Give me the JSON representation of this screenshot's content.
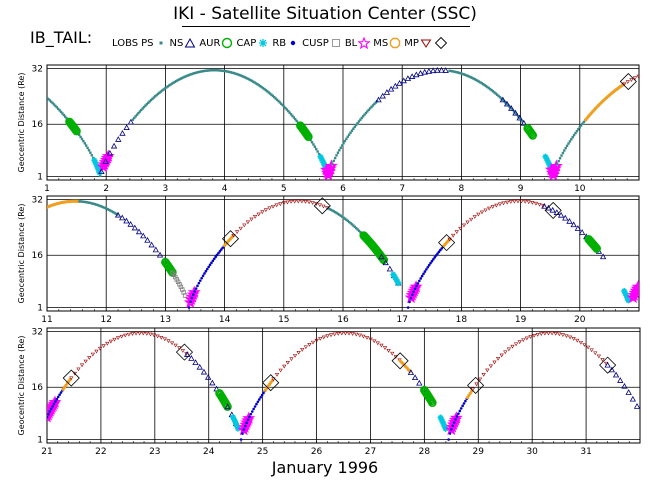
{
  "header": {
    "title": "IKI - Satellite Situation Center (SSC)",
    "mission": "IB_TAIL:"
  },
  "legend": [
    {
      "label": "LOBS",
      "symbol": "none",
      "color": "#000000"
    },
    {
      "label": "PS",
      "symbol": "square",
      "color": "#3a8a8a"
    },
    {
      "label": "NS",
      "symbol": "triangle",
      "color": "#000080"
    },
    {
      "label": "AUR",
      "symbol": "circle",
      "color": "#00b000"
    },
    {
      "label": "CAP",
      "symbol": "star",
      "color": "#00c8e0"
    },
    {
      "label": "RB",
      "symbol": "dot",
      "color": "#0000cc"
    },
    {
      "label": "CUSP",
      "symbol": "square-open",
      "color": "#808080"
    },
    {
      "label": "BL",
      "symbol": "star-open",
      "color": "#ff00ff"
    },
    {
      "label": "MS",
      "symbol": "octagon",
      "color": "#f0a020"
    },
    {
      "label": "MP",
      "symbol": "triangle-down",
      "color": "#a00000"
    },
    {
      "label": "",
      "symbol": "diamond",
      "color": "#000000"
    }
  ],
  "footer": {
    "xlabel": "January    1996"
  },
  "colors": {
    "PS": "#3a8a8a",
    "NS": "#000080",
    "AUR": "#00b000",
    "CAP": "#00c8e0",
    "RB": "#0000cc",
    "CUSP": "#808080",
    "BL": "#ff00ff",
    "MS": "#f0a020",
    "MP": "#a00000"
  },
  "chart_data": [
    {
      "type": "scatter",
      "ylabel": "Geocentric Distance  (Re)",
      "xlim": [
        1,
        11
      ],
      "ylim": [
        0,
        33
      ],
      "yticks": [
        1,
        16,
        32
      ],
      "xticks": [
        1,
        2,
        3,
        4,
        5,
        6,
        7,
        8,
        9,
        10
      ],
      "grid": true,
      "orbit": {
        "perigees": [
          1.9,
          5.75,
          9.55
        ],
        "prev_perigee": -1.95,
        "next_perigee": 13.4,
        "apogee": 31.5,
        "perigee_distance": 1
      },
      "regions": [
        {
          "region": "PS",
          "x_range": [
            1.0,
            1.92
          ]
        },
        {
          "region": "AUR",
          "x_range": [
            1.38,
            1.5
          ]
        },
        {
          "region": "CAP",
          "x_range": [
            1.8,
            1.9
          ]
        },
        {
          "region": "BL",
          "x_range": [
            1.95,
            2.05
          ]
        },
        {
          "region": "NS",
          "x_range": [
            1.92,
            2.45
          ]
        },
        {
          "region": "PS",
          "x_range": [
            2.45,
            5.75
          ]
        },
        {
          "region": "AUR",
          "x_range": [
            5.28,
            5.42
          ]
        },
        {
          "region": "CAP",
          "x_range": [
            5.62,
            5.72
          ]
        },
        {
          "region": "BL",
          "x_range": [
            5.72,
            5.82
          ]
        },
        {
          "region": "PS",
          "x_range": [
            5.82,
            6.6
          ]
        },
        {
          "region": "NS",
          "x_range": [
            6.6,
            7.8
          ]
        },
        {
          "region": "PS",
          "x_range": [
            7.8,
            9.05
          ]
        },
        {
          "region": "NS",
          "x_range": [
            8.7,
            9.1
          ]
        },
        {
          "region": "AUR",
          "x_range": [
            9.12,
            9.22
          ]
        },
        {
          "region": "CAP",
          "x_range": [
            9.42,
            9.52
          ]
        },
        {
          "region": "BL",
          "x_range": [
            9.52,
            9.62
          ]
        },
        {
          "region": "PS",
          "x_range": [
            9.62,
            10.1
          ]
        },
        {
          "region": "MS",
          "x_range": [
            10.1,
            10.75
          ]
        },
        {
          "region": "MP",
          "x_range": [
            10.75,
            11.0
          ]
        }
      ],
      "crossings": [
        10.82
      ]
    },
    {
      "type": "scatter",
      "ylabel": "Geocentric Distance  (Re)",
      "xlim": [
        11,
        21
      ],
      "ylim": [
        0,
        33
      ],
      "yticks": [
        1,
        16,
        32
      ],
      "xticks": [
        11,
        12,
        13,
        14,
        15,
        16,
        17,
        18,
        19,
        20
      ],
      "grid": true,
      "orbit": {
        "perigees": [
          13.4,
          17.1,
          20.85
        ],
        "prev_perigee": 9.55,
        "next_perigee": 24.6,
        "apogee": 31.5,
        "perigee_distance": 1
      },
      "regions": [
        {
          "region": "MS",
          "x_range": [
            11.0,
            11.55
          ]
        },
        {
          "region": "PS",
          "x_range": [
            11.55,
            12.2
          ]
        },
        {
          "region": "NS",
          "x_range": [
            12.2,
            13.1
          ]
        },
        {
          "region": "AUR",
          "x_range": [
            13.0,
            13.12
          ]
        },
        {
          "region": "CUSP",
          "x_range": [
            13.12,
            13.35
          ]
        },
        {
          "region": "BL",
          "x_range": [
            13.42,
            13.5
          ]
        },
        {
          "region": "RB",
          "x_range": [
            13.4,
            14.0
          ]
        },
        {
          "region": "MS",
          "x_range": [
            14.0,
            14.15
          ]
        },
        {
          "region": "MP",
          "x_range": [
            14.15,
            15.75
          ]
        },
        {
          "region": "PS",
          "x_range": [
            15.75,
            16.45
          ]
        },
        {
          "region": "AUR",
          "x_range": [
            16.35,
            16.7
          ]
        },
        {
          "region": "NS",
          "x_range": [
            16.65,
            17.0
          ]
        },
        {
          "region": "CAP",
          "x_range": [
            16.85,
            16.95
          ]
        },
        {
          "region": "BL",
          "x_range": [
            17.15,
            17.25
          ]
        },
        {
          "region": "RB",
          "x_range": [
            17.1,
            17.7
          ]
        },
        {
          "region": "MS",
          "x_range": [
            17.7,
            17.8
          ]
        },
        {
          "region": "MP",
          "x_range": [
            17.8,
            19.4
          ]
        },
        {
          "region": "NS",
          "x_range": [
            19.4,
            20.4
          ]
        },
        {
          "region": "AUR",
          "x_range": [
            20.15,
            20.3
          ]
        },
        {
          "region": "CAP",
          "x_range": [
            20.75,
            20.82
          ]
        },
        {
          "region": "BL",
          "x_range": [
            20.9,
            21.0
          ]
        }
      ],
      "crossings": [
        14.1,
        15.65,
        17.75,
        19.55
      ]
    },
    {
      "type": "scatter",
      "ylabel": "Geocentric Distance  (Re)",
      "xlim": [
        21,
        32
      ],
      "ylim": [
        0,
        33
      ],
      "yticks": [
        1,
        16,
        32
      ],
      "xticks": [
        21,
        22,
        23,
        24,
        25,
        26,
        27,
        28,
        29,
        30,
        31
      ],
      "grid": true,
      "orbit": {
        "perigees": [
          20.85,
          24.6,
          28.45
        ],
        "prev_perigee": 17.1,
        "next_perigee": 32.2,
        "apogee": 31.5,
        "perigee_distance": 1
      },
      "regions": [
        {
          "region": "BL",
          "x_range": [
            21.0,
            21.15
          ]
        },
        {
          "region": "RB",
          "x_range": [
            21.0,
            21.3
          ]
        },
        {
          "region": "MS",
          "x_range": [
            21.3,
            21.45
          ]
        },
        {
          "region": "MP",
          "x_range": [
            21.45,
            23.6
          ]
        },
        {
          "region": "NS",
          "x_range": [
            23.6,
            24.3
          ]
        },
        {
          "region": "AUR",
          "x_range": [
            24.2,
            24.35
          ]
        },
        {
          "region": "NS",
          "x_range": [
            24.35,
            24.55
          ]
        },
        {
          "region": "CAP",
          "x_range": [
            24.45,
            24.55
          ]
        },
        {
          "region": "BL",
          "x_range": [
            24.65,
            24.75
          ]
        },
        {
          "region": "RB",
          "x_range": [
            24.6,
            25.05
          ]
        },
        {
          "region": "MS",
          "x_range": [
            25.05,
            25.2
          ]
        },
        {
          "region": "MP",
          "x_range": [
            25.2,
            27.55
          ]
        },
        {
          "region": "MS",
          "x_range": [
            27.55,
            27.75
          ]
        },
        {
          "region": "NS",
          "x_range": [
            27.75,
            28.15
          ]
        },
        {
          "region": "AUR",
          "x_range": [
            28.0,
            28.15
          ]
        },
        {
          "region": "CAP",
          "x_range": [
            28.3,
            28.4
          ]
        },
        {
          "region": "BL",
          "x_range": [
            28.5,
            28.6
          ]
        },
        {
          "region": "RB",
          "x_range": [
            28.45,
            28.8
          ]
        },
        {
          "region": "MS",
          "x_range": [
            28.8,
            28.9
          ]
        },
        {
          "region": "MP",
          "x_range": [
            28.9,
            31.4
          ]
        },
        {
          "region": "NS",
          "x_range": [
            31.4,
            32.0
          ]
        }
      ],
      "crossings": [
        21.45,
        23.55,
        25.15,
        27.55,
        28.95,
        31.4
      ]
    }
  ]
}
